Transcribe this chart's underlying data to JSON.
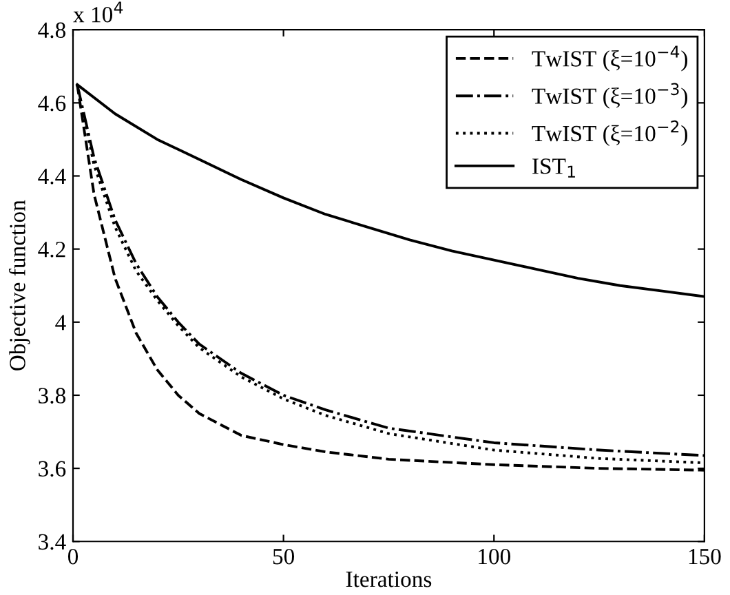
{
  "chart_data": {
    "type": "line",
    "xlabel": "Iterations",
    "ylabel": "Objective function",
    "annotations": [
      "x 10$^{4}$"
    ],
    "xlim": [
      0,
      150
    ],
    "xticks": [
      0,
      50,
      100,
      150
    ],
    "ylim": [
      3.4,
      4.8
    ],
    "yticks": [
      {
        "value": 3.4,
        "label": "3.4"
      },
      {
        "value": 3.6,
        "label": "3.6"
      },
      {
        "value": 3.8,
        "label": "3.8"
      },
      {
        "value": 4.0,
        "label": "4"
      },
      {
        "value": 4.2,
        "label": "4.2"
      },
      {
        "value": 4.4,
        "label": "4.4"
      },
      {
        "value": 4.6,
        "label": "4.6"
      },
      {
        "value": 4.8,
        "label": "4.8"
      }
    ],
    "grid": false,
    "legend": "top right",
    "marker": "none",
    "series": [
      {
        "name": "TwIST (ξ=10$^{−4}$)",
        "color": "#000000",
        "line_style": "dashed",
        "x": [
          1,
          5,
          10,
          15,
          20,
          25,
          30,
          40,
          50,
          60,
          75,
          100,
          125,
          150
        ],
        "values": [
          4.65,
          4.35,
          4.12,
          3.97,
          3.87,
          3.8,
          3.75,
          3.69,
          3.665,
          3.645,
          3.625,
          3.61,
          3.6,
          3.595
        ]
      },
      {
        "name": "TwIST (ξ=10$^{−3}$)",
        "color": "#000000",
        "line_style": "dashdot",
        "x": [
          1,
          5,
          10,
          15,
          20,
          25,
          30,
          40,
          50,
          60,
          75,
          100,
          125,
          150
        ],
        "values": [
          4.65,
          4.45,
          4.28,
          4.16,
          4.07,
          4.0,
          3.94,
          3.86,
          3.8,
          3.76,
          3.71,
          3.67,
          3.65,
          3.635
        ]
      },
      {
        "name": "TwIST (ξ=10$^{−2}$)",
        "color": "#000000",
        "line_style": "dotted",
        "x": [
          1,
          5,
          10,
          15,
          20,
          25,
          30,
          40,
          50,
          60,
          75,
          100,
          125,
          150
        ],
        "values": [
          4.65,
          4.43,
          4.26,
          4.14,
          4.06,
          3.99,
          3.93,
          3.85,
          3.79,
          3.745,
          3.695,
          3.65,
          3.627,
          3.615
        ]
      },
      {
        "name": "IST$_{1}$",
        "color": "#000000",
        "line_style": "solid",
        "x": [
          1,
          10,
          20,
          30,
          40,
          50,
          60,
          70,
          80,
          90,
          100,
          110,
          120,
          130,
          140,
          150
        ],
        "values": [
          4.65,
          4.57,
          4.5,
          4.445,
          4.39,
          4.34,
          4.295,
          4.26,
          4.225,
          4.195,
          4.17,
          4.145,
          4.12,
          4.1,
          4.085,
          4.07
        ]
      }
    ]
  }
}
